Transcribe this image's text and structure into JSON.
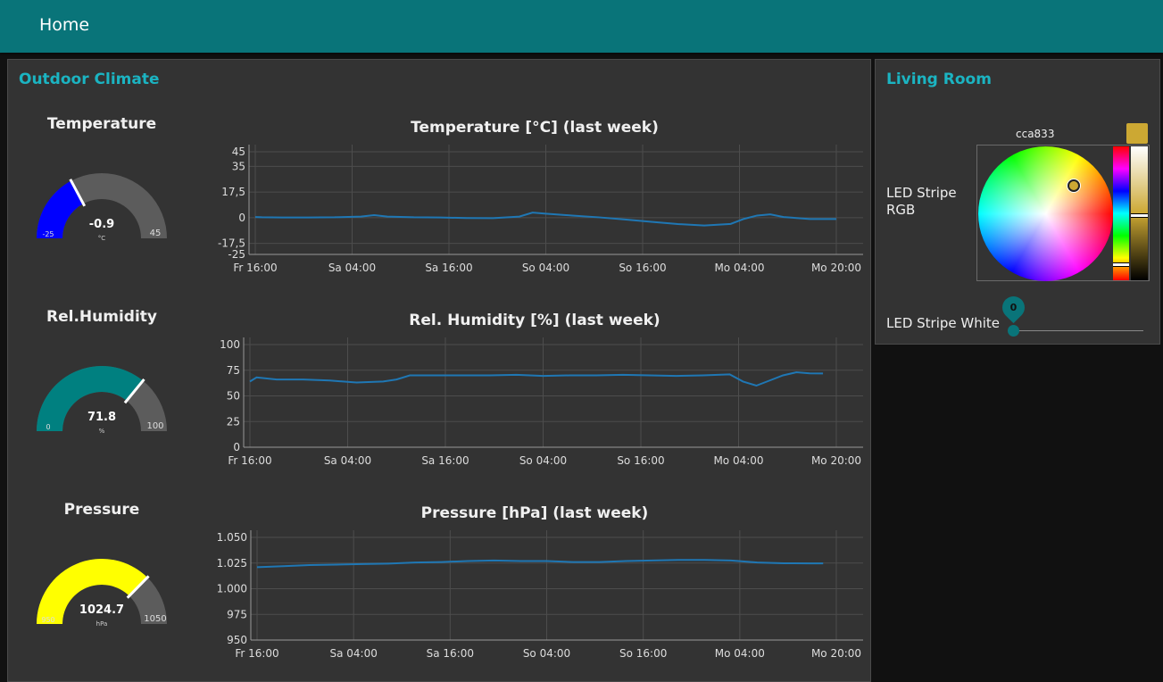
{
  "header": {
    "title": "Home"
  },
  "outdoor": {
    "title": "Outdoor Climate",
    "gauges": [
      {
        "title": "Temperature",
        "value": -0.9,
        "value_label": "-0.9",
        "unit": "°C",
        "min": -25,
        "max": 45,
        "min_label": "-25",
        "max_label": "45",
        "color": "#0000ff"
      },
      {
        "title": "Rel.Humidity",
        "value": 71.8,
        "value_label": "71.8",
        "unit": "%",
        "min": 0,
        "max": 100,
        "min_label": "0",
        "max_label": "100",
        "color": "#008080"
      },
      {
        "title": "Pressure",
        "value": 1024.7,
        "value_label": "1024.7",
        "unit": "hPa",
        "min": 950,
        "max": 1050,
        "min_label": "950",
        "max_label": "1050",
        "color": "#ffff00"
      }
    ]
  },
  "chart_data": [
    {
      "type": "line",
      "title": "Temperature [°C] (last week)",
      "xlabel": "",
      "ylabel": "",
      "x_ticks": [
        "Fr 16:00",
        "Sa 04:00",
        "Sa 16:00",
        "So 04:00",
        "So 16:00",
        "Mo 04:00",
        "Mo 20:00"
      ],
      "y_ticks": [
        "45",
        "35",
        "17,5",
        "0",
        "-17,5",
        "-25"
      ],
      "y_tick_values": [
        45,
        35,
        17.5,
        0,
        -17.5,
        -25
      ],
      "ylim": [
        -25,
        45
      ],
      "grid": true,
      "series": [
        {
          "color": "#1f77b4",
          "points": [
            [
              0,
              0.5
            ],
            [
              0.5,
              0.3
            ],
            [
              2,
              0.2
            ],
            [
              4,
              0.2
            ],
            [
              6,
              0.3
            ],
            [
              8,
              0.8
            ],
            [
              9,
              1.8
            ],
            [
              10,
              0.8
            ],
            [
              12,
              0.3
            ],
            [
              14,
              0.2
            ],
            [
              16,
              -0.2
            ],
            [
              18,
              -0.3
            ],
            [
              20,
              0.8
            ],
            [
              21,
              3.5
            ],
            [
              22,
              2.8
            ],
            [
              24,
              1.5
            ],
            [
              26,
              0.3
            ],
            [
              28,
              -1.2
            ],
            [
              30,
              -2.8
            ],
            [
              32,
              -4.3
            ],
            [
              34,
              -5.3
            ],
            [
              36,
              -4.2
            ],
            [
              37,
              -0.8
            ],
            [
              38,
              1.5
            ],
            [
              39,
              2.3
            ],
            [
              40,
              0.5
            ],
            [
              42,
              -0.9
            ],
            [
              44,
              -0.9
            ]
          ]
        }
      ]
    },
    {
      "type": "line",
      "title": "Rel. Humidity [%] (last week)",
      "xlabel": "",
      "ylabel": "",
      "x_ticks": [
        "Fr 16:00",
        "Sa 04:00",
        "Sa 16:00",
        "So 04:00",
        "So 16:00",
        "Mo 04:00",
        "Mo 20:00"
      ],
      "y_ticks": [
        "100",
        "75",
        "50",
        "25",
        "0"
      ],
      "y_tick_values": [
        100,
        75,
        50,
        25,
        0
      ],
      "ylim": [
        0,
        100
      ],
      "grid": true,
      "series": [
        {
          "color": "#1f77b4",
          "points": [
            [
              0,
              64
            ],
            [
              0.5,
              68
            ],
            [
              2,
              66
            ],
            [
              4,
              66
            ],
            [
              6,
              65
            ],
            [
              8,
              63
            ],
            [
              10,
              64
            ],
            [
              11,
              66
            ],
            [
              12,
              70
            ],
            [
              14,
              70
            ],
            [
              16,
              70
            ],
            [
              18,
              70
            ],
            [
              20,
              70.5
            ],
            [
              22,
              69.5
            ],
            [
              24,
              70
            ],
            [
              26,
              70
            ],
            [
              28,
              70.5
            ],
            [
              30,
              70
            ],
            [
              32,
              69.5
            ],
            [
              34,
              70
            ],
            [
              36,
              71
            ],
            [
              37,
              64
            ],
            [
              38,
              60
            ],
            [
              39,
              65
            ],
            [
              40,
              70
            ],
            [
              41,
              73
            ],
            [
              42,
              72
            ],
            [
              43,
              71.8
            ]
          ]
        }
      ]
    },
    {
      "type": "line",
      "title": "Pressure [hPa] (last week)",
      "xlabel": "",
      "ylabel": "",
      "x_ticks": [
        "Fr 16:00",
        "Sa 04:00",
        "Sa 16:00",
        "So 04:00",
        "So 16:00",
        "Mo 04:00",
        "Mo 20:00"
      ],
      "y_ticks": [
        "1.050",
        "1.025",
        "1.000",
        "975",
        "950"
      ],
      "y_tick_values": [
        1050,
        1025,
        1000,
        975,
        950
      ],
      "ylim": [
        950,
        1050
      ],
      "grid": true,
      "series": [
        {
          "color": "#1f77b4",
          "points": [
            [
              0,
              1021
            ],
            [
              2,
              1022
            ],
            [
              4,
              1023
            ],
            [
              6,
              1023.5
            ],
            [
              8,
              1024
            ],
            [
              10,
              1024.5
            ],
            [
              12,
              1025.5
            ],
            [
              14,
              1026
            ],
            [
              16,
              1027
            ],
            [
              18,
              1027.5
            ],
            [
              20,
              1027
            ],
            [
              22,
              1027
            ],
            [
              24,
              1026
            ],
            [
              26,
              1026
            ],
            [
              28,
              1027
            ],
            [
              30,
              1027.5
            ],
            [
              32,
              1028
            ],
            [
              34,
              1028
            ],
            [
              36,
              1027.5
            ],
            [
              38,
              1025.5
            ],
            [
              40,
              1024.8
            ],
            [
              42,
              1024.7
            ],
            [
              43,
              1024.7
            ]
          ]
        }
      ]
    }
  ],
  "living_room": {
    "title": "Living Room",
    "led_rgb_label": "LED Stripe RGB",
    "color_hex": "cca833",
    "swatch_color": "#cca833",
    "led_white_label": "LED Stripe White",
    "white_value": 0,
    "white_value_label": "0",
    "slider_min": 0,
    "slider_max": 100
  }
}
